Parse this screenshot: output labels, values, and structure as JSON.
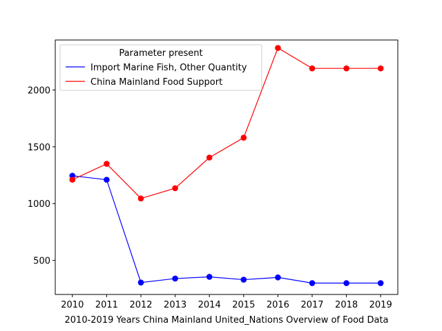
{
  "chart_data": {
    "type": "line",
    "title": "",
    "xlabel": "2010-2019 Years China Mainland United_Nations Overview of Food Data",
    "ylabel": "",
    "x": [
      2010,
      2011,
      2012,
      2013,
      2014,
      2015,
      2016,
      2017,
      2018,
      2019
    ],
    "x_tick_labels": [
      "2010",
      "2011",
      "2012",
      "2013",
      "2014",
      "2015",
      "2016",
      "2017",
      "2018",
      "2019"
    ],
    "y_ticks": [
      500,
      1000,
      1500,
      2000
    ],
    "y_tick_labels": [
      "500",
      "1000",
      "1500",
      "2000"
    ],
    "xlim": [
      2009.5,
      2019.5
    ],
    "ylim": [
      200,
      2440
    ],
    "grid": false,
    "legend": {
      "title": "Parameter present",
      "placement": "upper-left"
    },
    "series": [
      {
        "name": "Import Marine Fish, Other Quantity",
        "color": "#0000ff",
        "values": [
          1245,
          1210,
          305,
          340,
          355,
          330,
          350,
          300,
          300,
          300
        ]
      },
      {
        "name": "China Mainland Food Support",
        "color": "#ff0000",
        "values": [
          1210,
          1350,
          1045,
          1135,
          1405,
          1580,
          2370,
          2190,
          2190,
          2190
        ]
      }
    ]
  }
}
